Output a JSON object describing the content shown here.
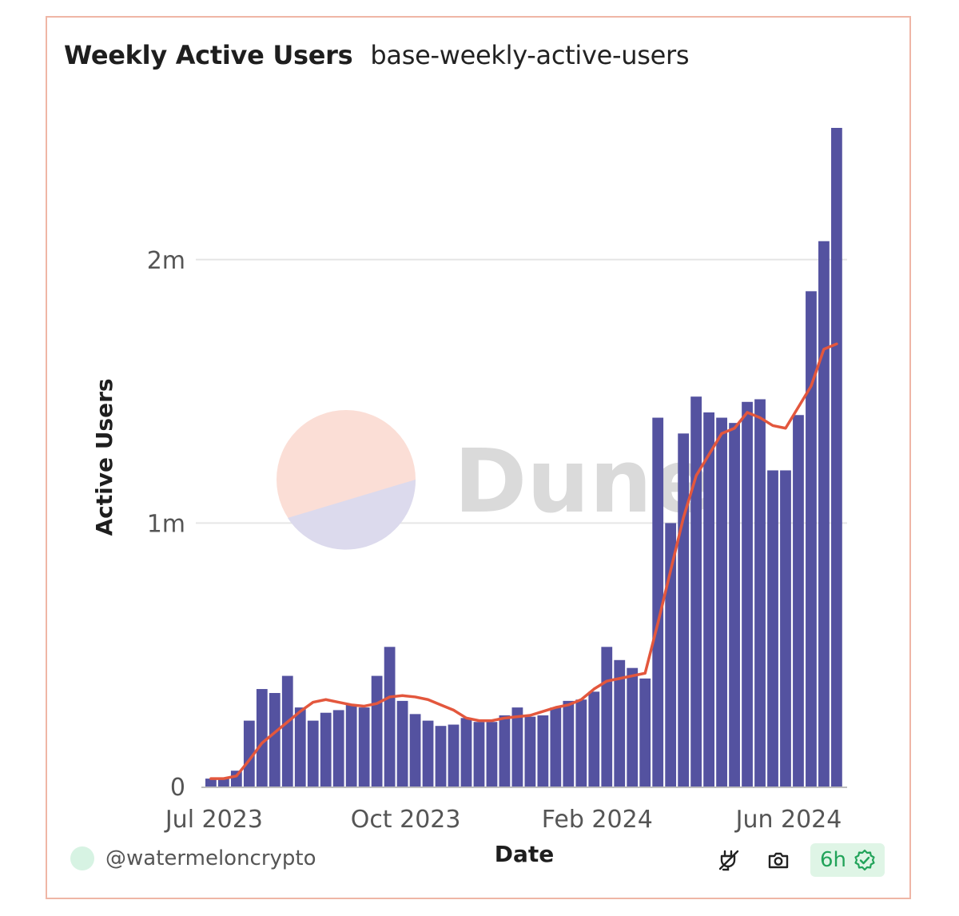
{
  "header": {
    "title": "Weekly Active Users",
    "subtitle": "base-weekly-active-users"
  },
  "footer": {
    "username": "@watermeloncrypto",
    "refresh_badge": "6h",
    "icons": [
      "plug-icon",
      "camera-icon",
      "verified-check-icon"
    ]
  },
  "watermark": "Dune",
  "colors": {
    "bars": "#5452a0",
    "line": "#e3573d",
    "card_border": "#efb6a6",
    "badge_text": "#22a35a",
    "badge_bg": "#dff5e6"
  },
  "chart_data": {
    "type": "bar",
    "title": "Weekly Active Users",
    "xlabel": "Date",
    "ylabel": "Active Users",
    "ylim": [
      0,
      2500000
    ],
    "yticks": [
      {
        "value": 0,
        "label": "0"
      },
      {
        "value": 1000000,
        "label": "1m"
      },
      {
        "value": 2000000,
        "label": "2m"
      }
    ],
    "xticks": [
      {
        "index": 0,
        "label": "Jul 2023"
      },
      {
        "index": 15,
        "label": "Oct 2023"
      },
      {
        "index": 30,
        "label": "Feb 2024"
      },
      {
        "index": 45,
        "label": "Jun 2024"
      }
    ],
    "grid": true,
    "series": [
      {
        "type": "bar",
        "values": [
          30000,
          30000,
          60000,
          250000,
          370000,
          355000,
          420000,
          300000,
          250000,
          280000,
          290000,
          310000,
          300000,
          420000,
          530000,
          325000,
          275000,
          250000,
          230000,
          235000,
          260000,
          245000,
          245000,
          270000,
          300000,
          265000,
          270000,
          300000,
          325000,
          330000,
          360000,
          530000,
          480000,
          450000,
          410000,
          1400000,
          1000000,
          1340000,
          1480000,
          1420000,
          1400000,
          1380000,
          1460000,
          1470000,
          1200000,
          1200000,
          1410000,
          1880000,
          2070000,
          2500000
        ]
      },
      {
        "type": "line",
        "values": [
          30000,
          30000,
          40000,
          100000,
          165000,
          205000,
          245000,
          285000,
          320000,
          330000,
          320000,
          310000,
          305000,
          315000,
          340000,
          345000,
          340000,
          330000,
          310000,
          290000,
          260000,
          250000,
          250000,
          260000,
          265000,
          270000,
          285000,
          300000,
          310000,
          330000,
          370000,
          400000,
          410000,
          420000,
          430000,
          620000,
          820000,
          1020000,
          1180000,
          1260000,
          1340000,
          1360000,
          1420000,
          1400000,
          1370000,
          1360000,
          1440000,
          1520000,
          1660000,
          1680000
        ]
      }
    ]
  }
}
